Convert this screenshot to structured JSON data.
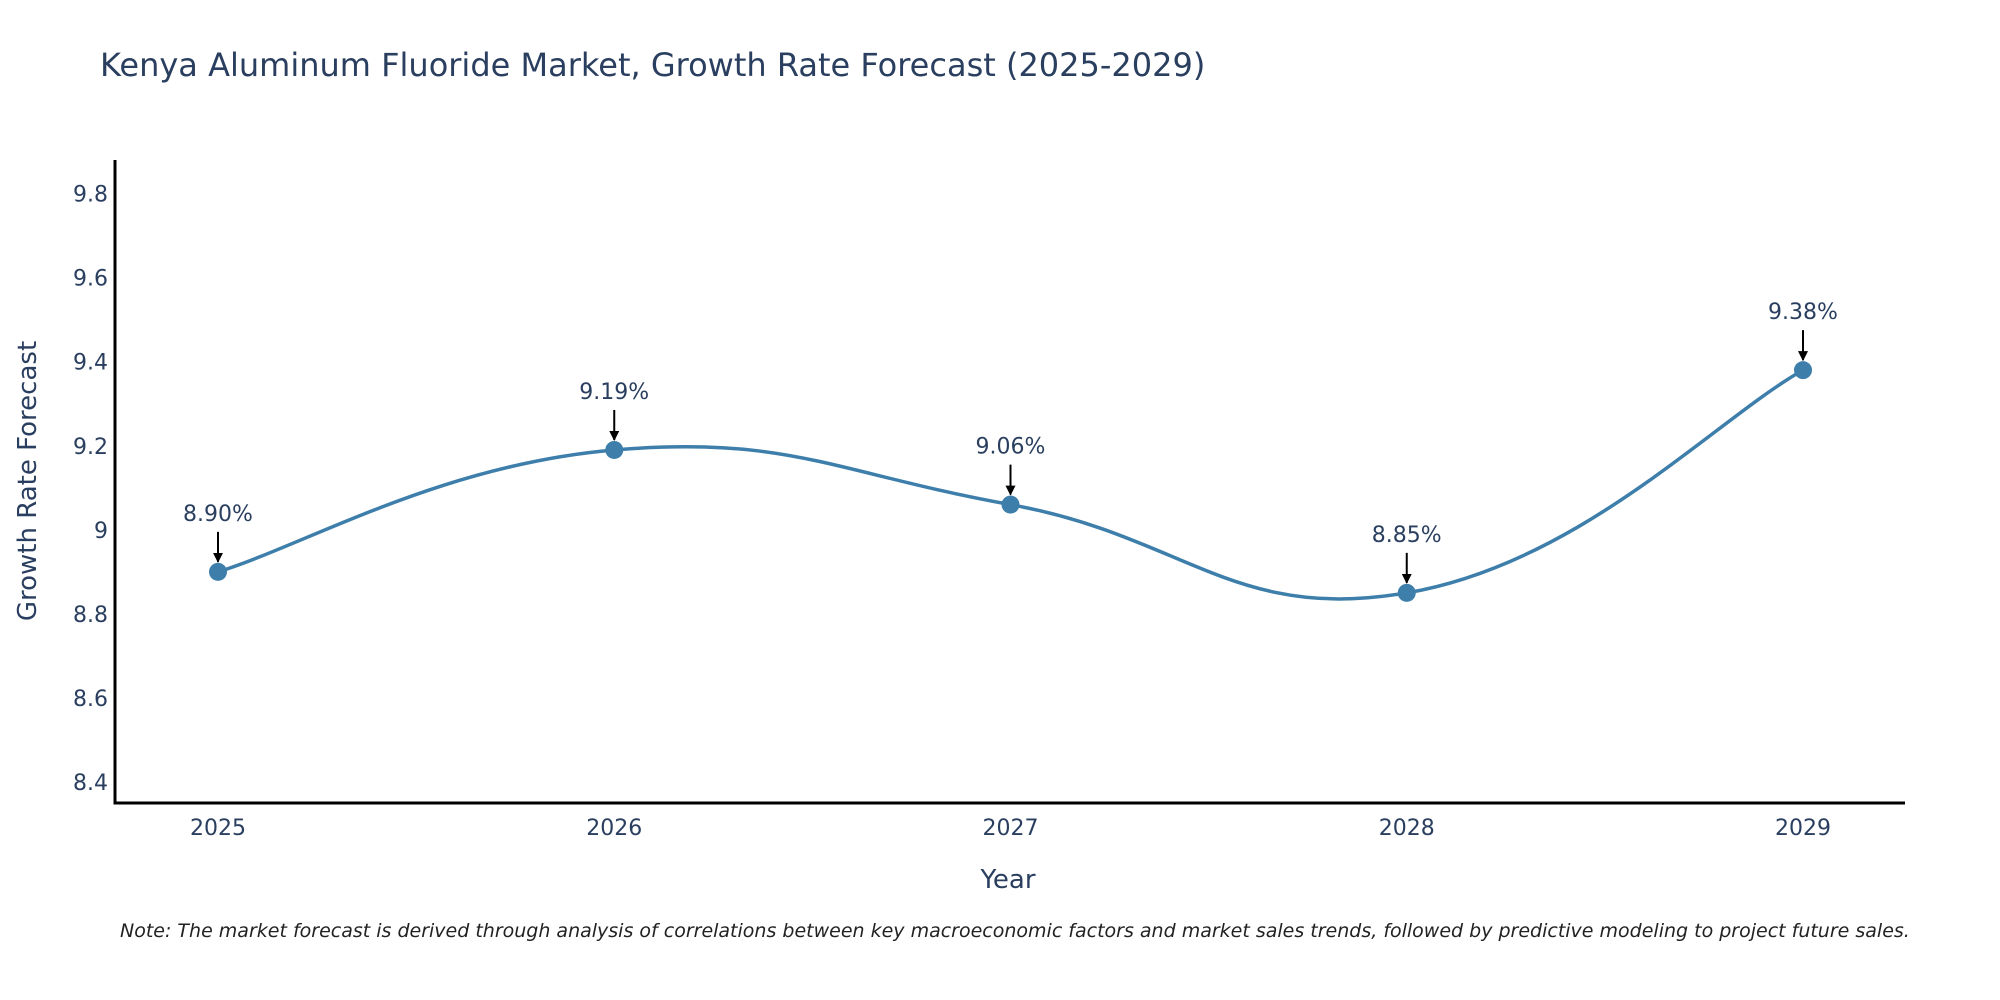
{
  "chart_data": {
    "type": "line",
    "title": "Kenya Aluminum Fluoride Market, Growth Rate Forecast (2025-2029)",
    "xlabel": "Year",
    "ylabel": "Growth Rate Forecast",
    "categories": [
      "2025",
      "2026",
      "2027",
      "2028",
      "2029"
    ],
    "values": [
      8.9,
      9.19,
      9.06,
      8.85,
      9.38
    ],
    "data_labels": [
      "8.90%",
      "9.19%",
      "9.06%",
      "8.85%",
      "9.38%"
    ],
    "yticks": [
      8.4,
      8.6,
      8.8,
      9,
      9.2,
      9.4,
      9.6,
      9.8
    ],
    "ytick_labels": [
      "8.4",
      "8.6",
      "8.8",
      "9",
      "9.2",
      "9.4",
      "9.6",
      "9.8"
    ],
    "ylim": [
      8.35,
      9.88
    ],
    "grid": false,
    "line_color": "#3d7eab",
    "note": "Note: The market forecast is derived through analysis of correlations between key macroeconomic factors and market sales trends, followed by predictive modeling to project future sales."
  }
}
